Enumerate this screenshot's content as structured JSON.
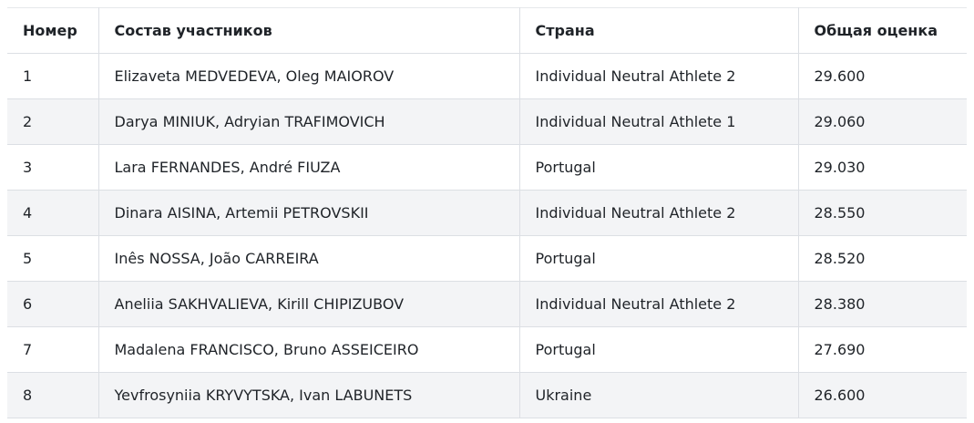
{
  "table": {
    "header": [
      "Номер",
      "Состав участников",
      "Страна",
      "Общая оценка"
    ],
    "rows": [
      [
        "1",
        "Elizaveta MEDVEDEVA, Oleg MAIOROV",
        "Individual Neutral Athlete 2",
        "29.600"
      ],
      [
        "2",
        "Darya MINIUK, Adryian TRAFIMOVICH",
        "Individual Neutral Athlete 1",
        "29.060"
      ],
      [
        "3",
        "Lara FERNANDES, André FIUZA",
        "Portugal",
        "29.030"
      ],
      [
        "4",
        "Dinara AISINA, Artemii PETROVSKII",
        "Individual Neutral Athlete 2",
        "28.550"
      ],
      [
        "5",
        "Inês NOSSA, João CARREIRA",
        "Portugal",
        "28.520"
      ],
      [
        "6",
        "Aneliia SAKHVALIEVA, Kirill CHIPIZUBOV",
        "Individual Neutral Athlete 2",
        "28.380"
      ],
      [
        "7",
        "Madalena FRANCISCO, Bruno ASSEICEIRO",
        "Portugal",
        "27.690"
      ],
      [
        "8",
        "Yevfrosyniia KRYVYTSKA, Ivan LABUNETS",
        "Ukraine",
        "26.600"
      ]
    ]
  }
}
